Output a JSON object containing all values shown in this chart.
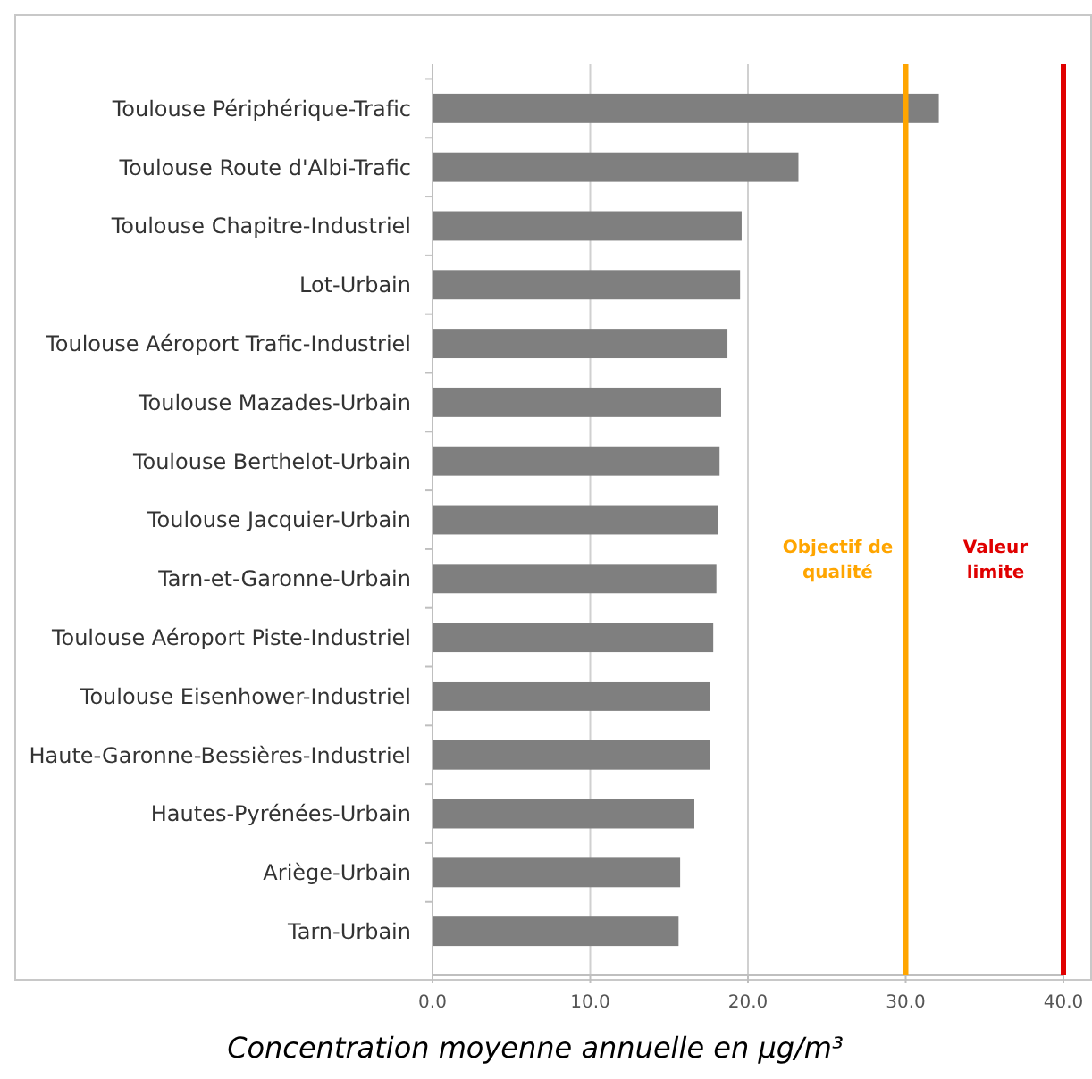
{
  "chart_data": {
    "type": "bar",
    "orientation": "horizontal",
    "categories": [
      "Toulouse Périphérique-Trafic",
      "Toulouse Route d'Albi-Trafic",
      "Toulouse Chapitre-Industriel",
      "Lot-Urbain",
      "Toulouse Aéroport Trafic-Industriel",
      "Toulouse Mazades-Urbain",
      "Toulouse Berthelot-Urbain",
      "Toulouse Jacquier-Urbain",
      "Tarn-et-Garonne-Urbain",
      "Toulouse Aéroport Piste-Industriel",
      "Toulouse Eisenhower-Industriel",
      "Haute-Garonne-Bessières-Industriel",
      "Hautes-Pyrénées-Urbain",
      "Ariège-Urbain",
      "Tarn-Urbain"
    ],
    "values": [
      32.1,
      23.2,
      19.6,
      19.5,
      18.7,
      18.3,
      18.2,
      18.1,
      18.0,
      17.8,
      17.6,
      17.6,
      16.6,
      15.7,
      15.6
    ],
    "color": "#7f7f7f",
    "xlim": [
      0,
      40
    ],
    "xticks": [
      {
        "value": 0,
        "label": "0.0"
      },
      {
        "value": 10,
        "label": "10.0"
      },
      {
        "value": 20,
        "label": "20.0"
      },
      {
        "value": 30,
        "label": "30.0"
      },
      {
        "value": 40,
        "label": "40.0"
      }
    ],
    "xlabel": "Concentration moyenne annuelle en µg/m³",
    "grid": "x",
    "ref_lines": [
      {
        "axis": "x",
        "value": 30,
        "label": "Objectif de qualité",
        "color": "#ffa500"
      },
      {
        "axis": "x",
        "value": 40,
        "label": "Valeur limite",
        "color": "#e00000"
      }
    ]
  }
}
